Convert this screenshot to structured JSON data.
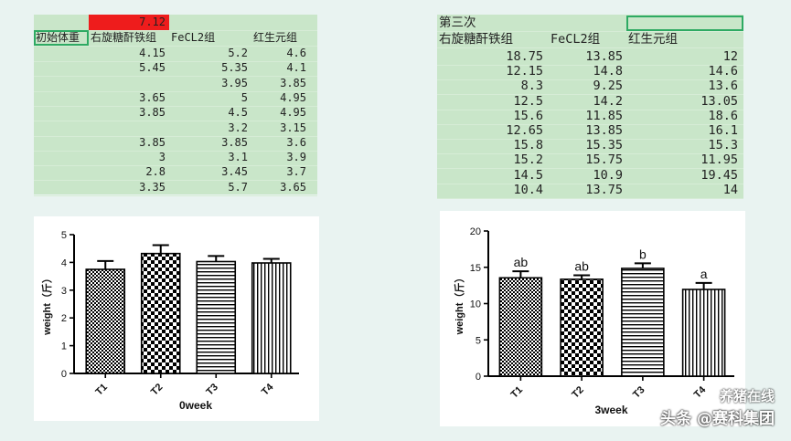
{
  "sheet1": {
    "top_value": "7.12",
    "header": [
      "初始体重",
      "右旋糖酐铁组",
      "FeCL2组",
      "红生元组"
    ],
    "rows": [
      [
        "",
        "4.15",
        "5.2",
        "4.6"
      ],
      [
        "",
        "5.45",
        "5.35",
        "4.1"
      ],
      [
        "",
        "",
        "3.95",
        "3.85"
      ],
      [
        "",
        "3.65",
        "5",
        "4.95"
      ],
      [
        "",
        "3.85",
        "4.5",
        "4.95"
      ],
      [
        "",
        "",
        "3.2",
        "3.15"
      ],
      [
        "",
        "3.85",
        "3.85",
        "3.6"
      ],
      [
        "",
        "3",
        "3.1",
        "3.9"
      ],
      [
        "",
        "2.8",
        "3.45",
        "3.7"
      ],
      [
        "",
        "3.35",
        "5.7",
        "3.65"
      ]
    ],
    "highlight_color": "#ee1c1c",
    "selection_color": "#2eaa63"
  },
  "sheet2": {
    "title": "第三次",
    "header": [
      "右旋糖酐铁组",
      "FeCL2组",
      "红生元组"
    ],
    "rows": [
      [
        "18.75",
        "13.85",
        "12"
      ],
      [
        "12.15",
        "14.8",
        "14.6"
      ],
      [
        "8.3",
        "9.25",
        "13.6"
      ],
      [
        "12.5",
        "14.2",
        "13.05"
      ],
      [
        "15.6",
        "11.85",
        "18.6"
      ],
      [
        "12.65",
        "13.85",
        "16.1"
      ],
      [
        "15.8",
        "15.35",
        "15.3"
      ],
      [
        "15.2",
        "15.75",
        "11.95"
      ],
      [
        "14.5",
        "10.9",
        "19.45"
      ],
      [
        "10.4",
        "13.75",
        "14"
      ]
    ]
  },
  "chart_data": [
    {
      "type": "bar",
      "title": "",
      "xlabel": "0week",
      "ylabel": "weight（斤）",
      "categories": [
        "T1",
        "T2",
        "T3",
        "T4"
      ],
      "values": [
        3.75,
        4.32,
        4.03,
        3.98
      ],
      "errors": [
        0.3,
        0.3,
        0.2,
        0.15
      ],
      "patterns": [
        "dense-check",
        "check",
        "horizontal",
        "vertical"
      ],
      "ylim": [
        0,
        5
      ],
      "yticks": [
        "0",
        "1",
        "2",
        "3",
        "4",
        "5"
      ],
      "sig_labels": [
        "",
        "",
        "",
        ""
      ]
    },
    {
      "type": "bar",
      "title": "",
      "xlabel": "3week",
      "ylabel": "weight（斤）",
      "categories": [
        "T1",
        "T2",
        "T3",
        "T4"
      ],
      "values": [
        13.55,
        13.35,
        14.85,
        11.95
      ],
      "errors": [
        0.9,
        0.55,
        0.7,
        0.9
      ],
      "patterns": [
        "dense-check",
        "check",
        "horizontal",
        "vertical"
      ],
      "ylim": [
        0,
        20
      ],
      "yticks": [
        "0",
        "5",
        "10",
        "15",
        "20"
      ],
      "sig_labels": [
        "ab",
        "ab",
        "b",
        "a"
      ]
    }
  ],
  "watermark": {
    "line1": "养猪在线",
    "line2": "头条 @赛科集团"
  }
}
